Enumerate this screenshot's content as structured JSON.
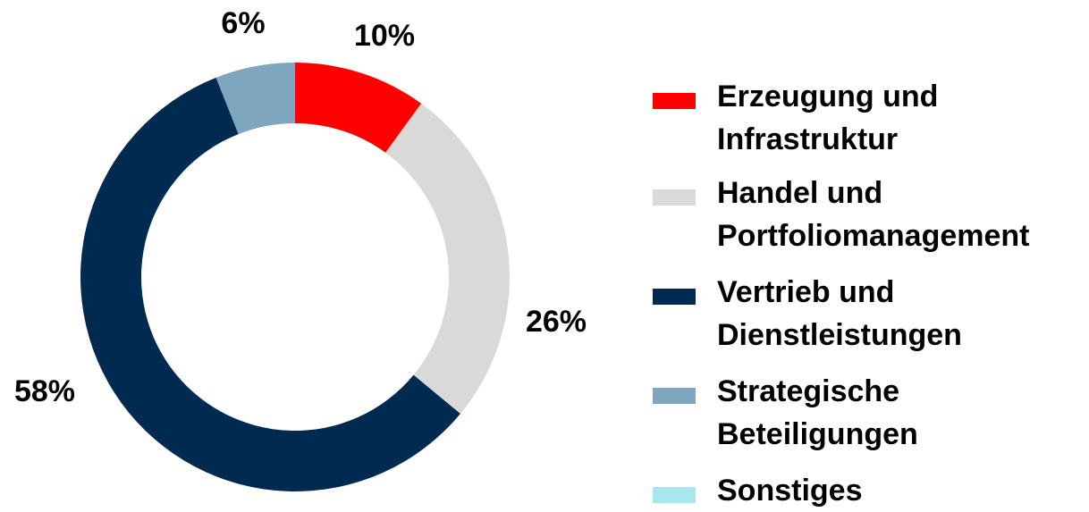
{
  "chart_data": {
    "type": "donut",
    "categories": [
      "Erzeugung und\nInfrastruktur",
      "Handel und\nPortfoliomanagement",
      "Vertrieb und\nDienstleistungen",
      "Strategische\nBeteiligungen",
      "Sonstiges"
    ],
    "values": [
      10,
      26,
      58,
      6,
      0
    ],
    "value_labels": [
      "10%",
      "26%",
      "58%",
      "6%",
      null
    ],
    "colors": [
      "#ff0000",
      "#d9d9d9",
      "#002a50",
      "#7ea6bf",
      "#a6e8f0"
    ],
    "legend": "right"
  }
}
